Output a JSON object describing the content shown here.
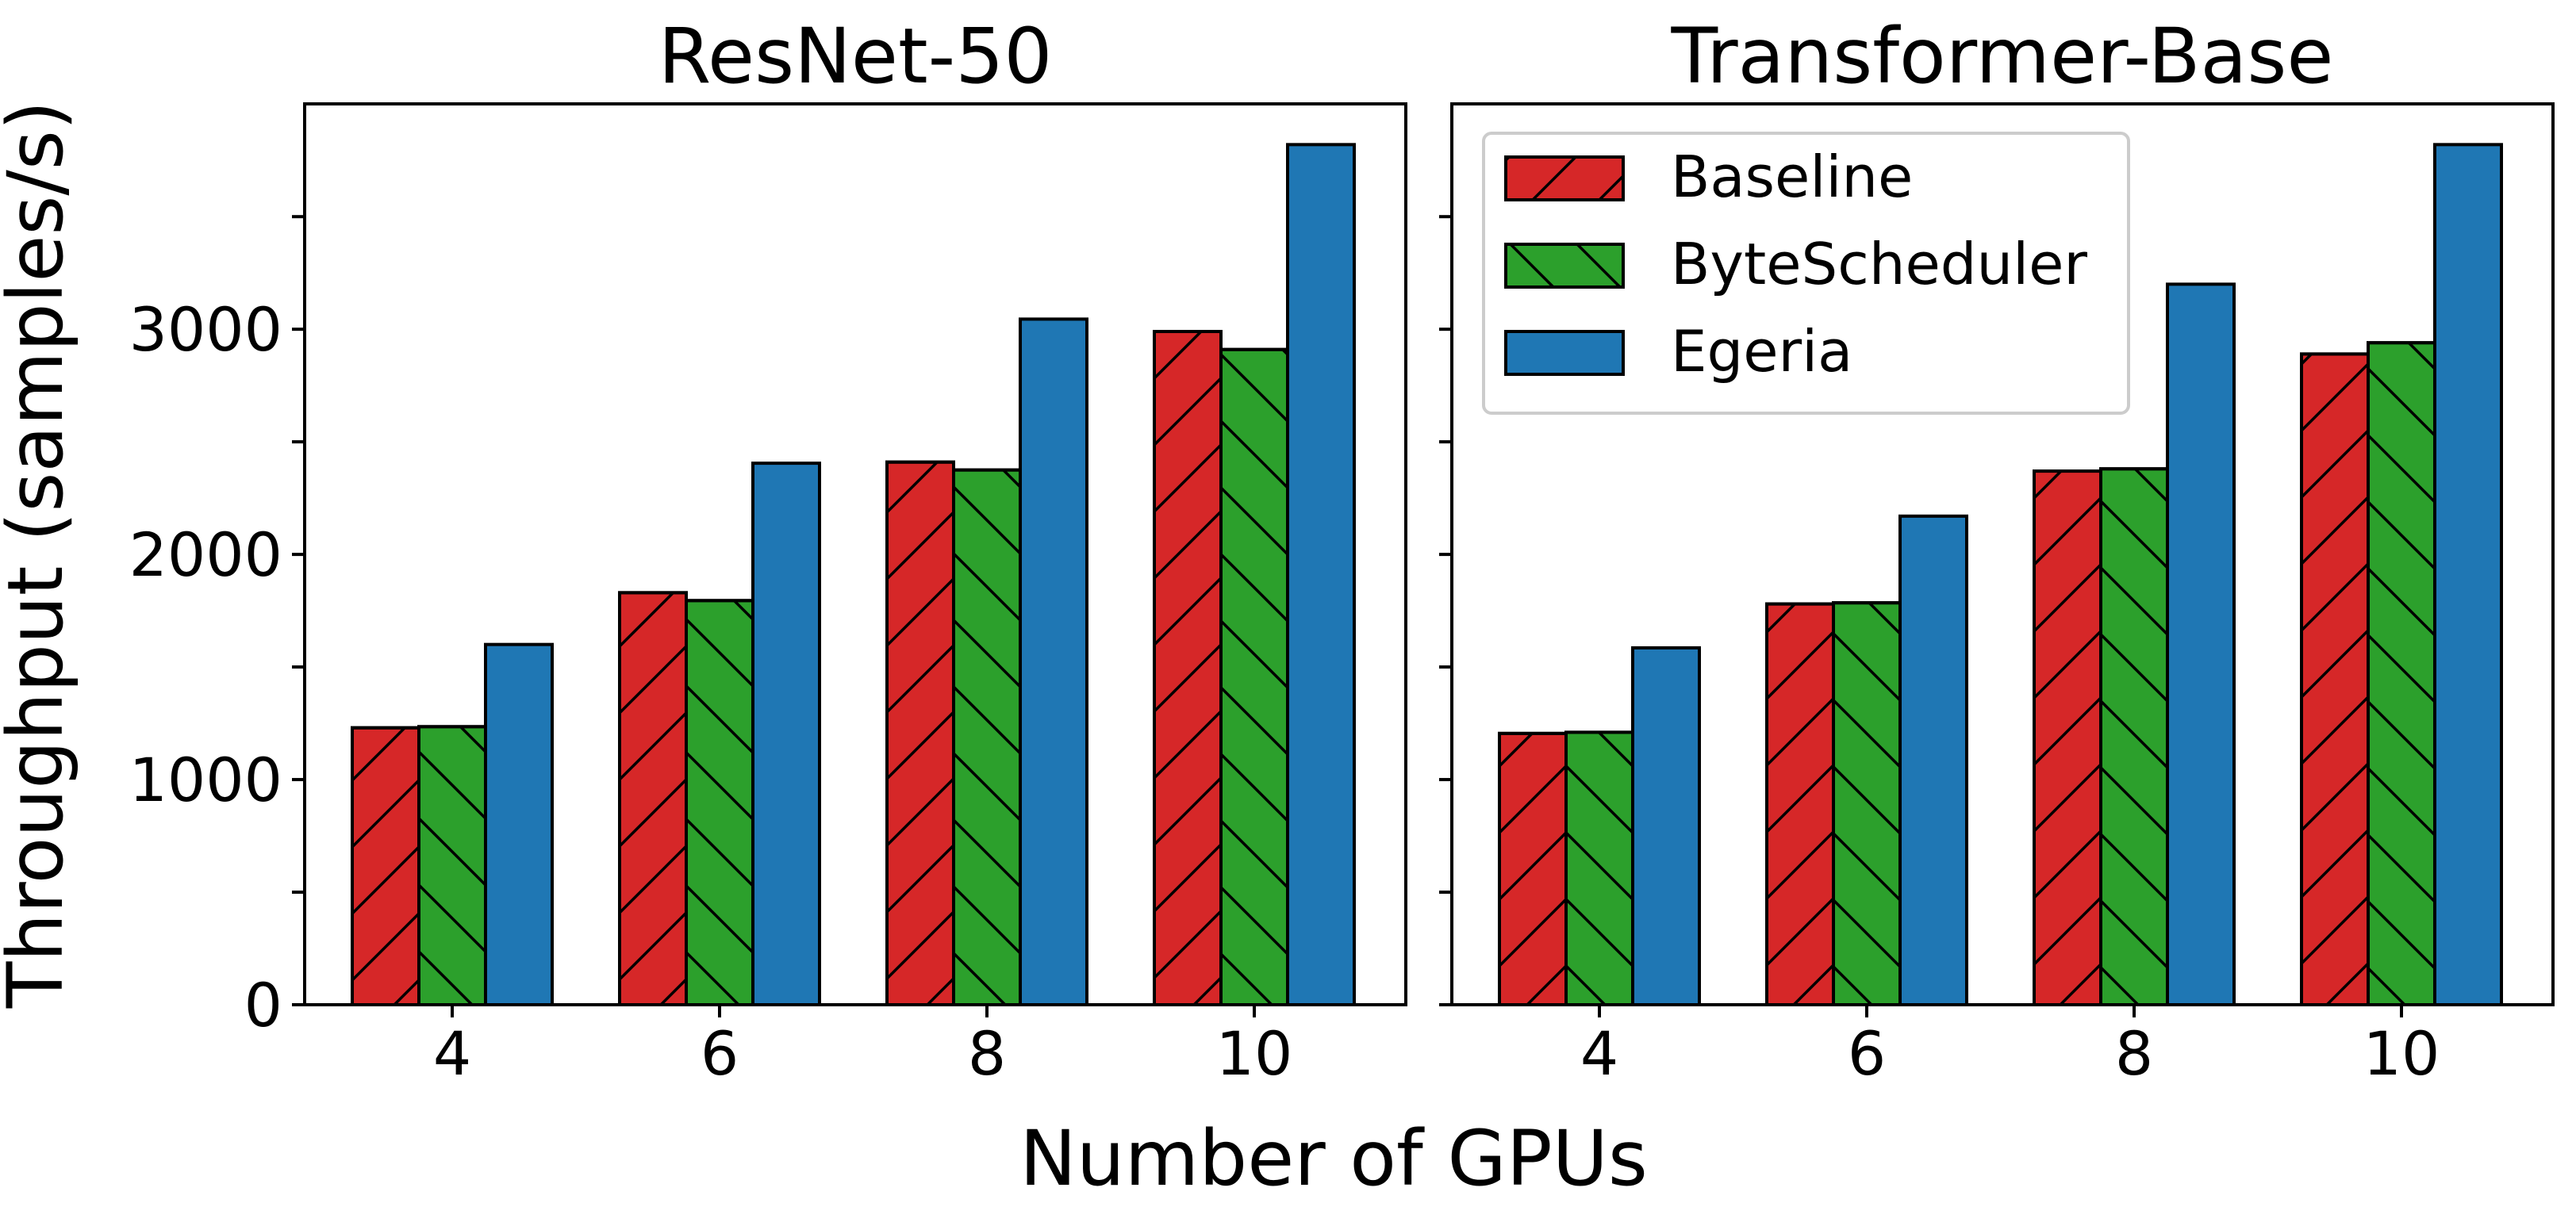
{
  "chart_data": {
    "type": "bar",
    "xlabel": "Number of GPUs",
    "ylabel": "Throughput (samples/s)",
    "categories": [
      "4",
      "6",
      "8",
      "10"
    ],
    "ylim": [
      0,
      4000
    ],
    "yticks": [
      0,
      1000,
      2000,
      3000
    ],
    "grid": false,
    "legend": {
      "placement": "upper-left",
      "panel": 2,
      "entries": [
        "Baseline",
        "ByteScheduler",
        "Egeria"
      ]
    },
    "series_styles": [
      {
        "name": "Baseline",
        "color": "#d62728",
        "hatch": "forward-diagonal"
      },
      {
        "name": "ByteScheduler",
        "color": "#2ca02c",
        "hatch": "back-diagonal"
      },
      {
        "name": "Egeria",
        "color": "#1f77b4",
        "hatch": "none"
      }
    ],
    "panels": [
      {
        "title": "ResNet-50",
        "show_ytick_labels": true,
        "series": [
          {
            "name": "Baseline",
            "values": [
              1230,
              1830,
              2410,
              2990
            ]
          },
          {
            "name": "ByteScheduler",
            "values": [
              1235,
              1795,
              2375,
              2910
            ]
          },
          {
            "name": "Egeria",
            "values": [
              1600,
              2405,
              3045,
              3820
            ]
          }
        ]
      },
      {
        "title": "Transformer-Base",
        "show_ytick_labels": false,
        "series": [
          {
            "name": "Baseline",
            "values": [
              1205,
              1780,
              2370,
              2890
            ]
          },
          {
            "name": "ByteScheduler",
            "values": [
              1210,
              1785,
              2380,
              2940
            ]
          },
          {
            "name": "Egeria",
            "values": [
              1585,
              2170,
              3200,
              3820
            ]
          }
        ]
      }
    ]
  }
}
